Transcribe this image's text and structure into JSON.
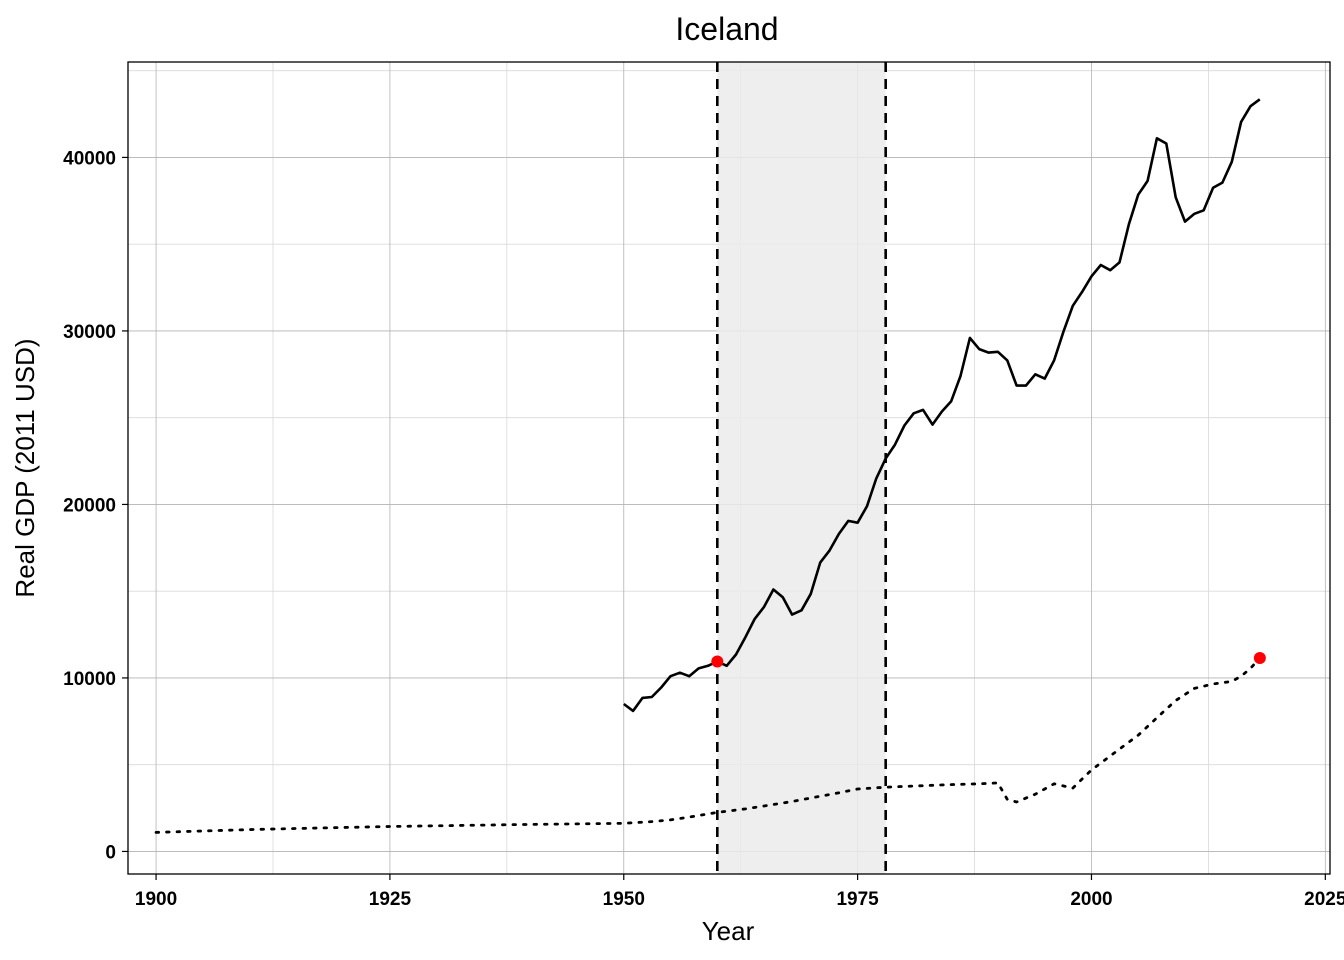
{
  "chart_data": {
    "type": "line",
    "title": "Iceland",
    "xlabel": "Year",
    "ylabel": "Real GDP (2011 USD)",
    "xlim": [
      1897,
      2025.5
    ],
    "ylim": [
      -1300,
      45500
    ],
    "x_ticks": [
      1900,
      1925,
      1950,
      1975,
      2000,
      2025
    ],
    "y_ticks": [
      0,
      10000,
      20000,
      30000,
      40000
    ],
    "grid": true,
    "legend": "none",
    "shaded_region": {
      "x_start": 1960,
      "x_end": 1978,
      "color": "#ebebeb"
    },
    "vlines": [
      {
        "x": 1960,
        "style": "dashed"
      },
      {
        "x": 1978,
        "style": "dashed"
      }
    ],
    "series": [
      {
        "style": "solid",
        "color": "#000000",
        "x": [
          1950,
          1951,
          1952,
          1953,
          1954,
          1955,
          1956,
          1957,
          1958,
          1959,
          1960,
          1961,
          1962,
          1963,
          1964,
          1965,
          1966,
          1967,
          1968,
          1969,
          1970,
          1971,
          1972,
          1973,
          1974,
          1975,
          1976,
          1977,
          1978,
          1979,
          1980,
          1981,
          1982,
          1983,
          1984,
          1985,
          1986,
          1987,
          1988,
          1989,
          1990,
          1991,
          1992,
          1993,
          1994,
          1995,
          1996,
          1997,
          1998,
          1999,
          2000,
          2001,
          2002,
          2003,
          2004,
          2005,
          2006,
          2007,
          2008,
          2009,
          2010,
          2011,
          2012,
          2013,
          2014,
          2015,
          2016,
          2017,
          2018
        ],
        "y": [
          8500,
          8100,
          8850,
          8900,
          9450,
          10100,
          10300,
          10100,
          10550,
          10700,
          10950,
          10700,
          11350,
          12350,
          13400,
          14100,
          15100,
          14650,
          13650,
          13900,
          14850,
          16650,
          17350,
          18300,
          19050,
          18950,
          19900,
          21500,
          22650,
          23450,
          24550,
          25250,
          25450,
          24600,
          25350,
          25950,
          27400,
          29600,
          28950,
          28750,
          28800,
          28300,
          26850,
          26850,
          27500,
          27250,
          28300,
          29950,
          31450,
          32250,
          33150,
          33800,
          33500,
          33950,
          36150,
          37850,
          38650,
          41100,
          40800,
          37700,
          36300,
          36750,
          36950,
          38250,
          38550,
          39750,
          42050,
          42950,
          43350
        ]
      },
      {
        "style": "dotted",
        "color": "#000000",
        "x": [
          1900,
          1905,
          1910,
          1915,
          1920,
          1925,
          1930,
          1935,
          1940,
          1945,
          1950,
          1953,
          1955,
          1957,
          1960,
          1963,
          1965,
          1968,
          1970,
          1973,
          1975,
          1978,
          1980,
          1985,
          1988,
          1990,
          1991,
          1992,
          1994,
          1996,
          1998,
          2000,
          2003,
          2005,
          2007,
          2009,
          2011,
          2013,
          2015,
          2016,
          2017,
          2018
        ],
        "y": [
          1100,
          1180,
          1260,
          1320,
          1380,
          1440,
          1480,
          1520,
          1560,
          1590,
          1620,
          1720,
          1820,
          1980,
          2250,
          2450,
          2620,
          2880,
          3080,
          3380,
          3600,
          3700,
          3750,
          3850,
          3900,
          3950,
          3000,
          2850,
          3300,
          3900,
          3650,
          4700,
          5900,
          6700,
          7700,
          8700,
          9400,
          9650,
          9800,
          10100,
          10550,
          11150
        ]
      }
    ],
    "points": [
      {
        "x": 1960,
        "y": 10950,
        "color": "#ff0000"
      },
      {
        "x": 2018,
        "y": 11150,
        "color": "#ff0000"
      }
    ]
  }
}
